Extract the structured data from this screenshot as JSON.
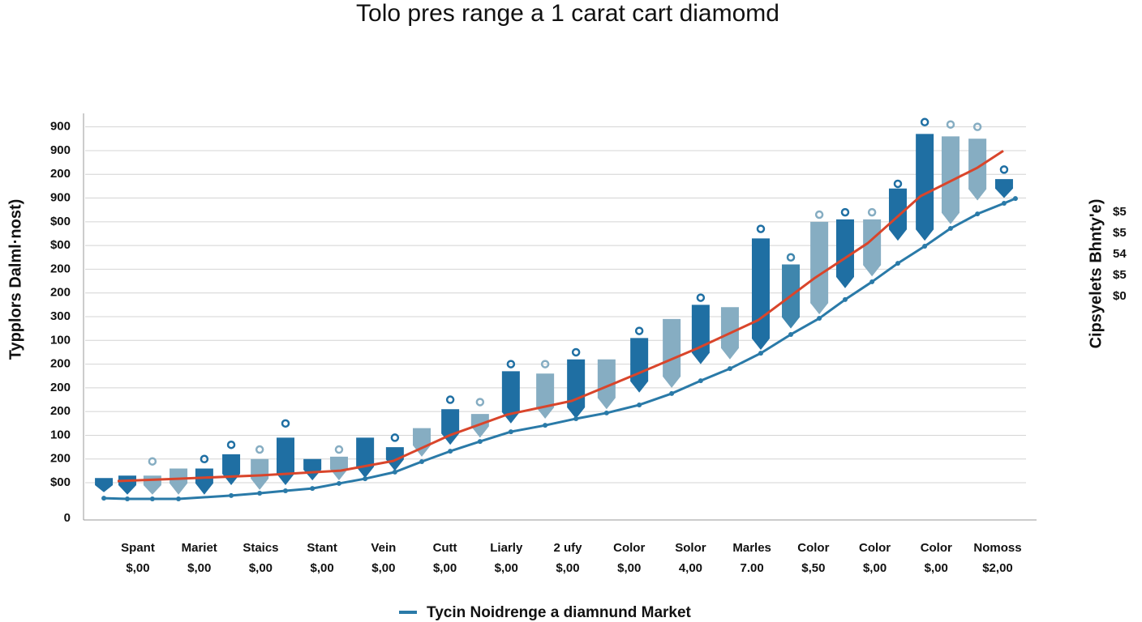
{
  "chart_data": {
    "type": "box-line",
    "title": "Tolo pres range a 1 carat cart diamomd",
    "y_label": "Typplors Dalml·nost)",
    "y2_label": "Cipsyelets Bhnty'e)",
    "y2_labels": [
      "$5",
      "$5",
      "54",
      "$5",
      "$0"
    ],
    "categories": [
      "Spant",
      "Mariet",
      "Staics",
      "Stant",
      "Vein",
      "Cutt",
      "Liarly",
      "2 ufy",
      "Color",
      "Solor",
      "Marles",
      "Color",
      "Color",
      "Color",
      "Nomoss"
    ],
    "category_sublabels": [
      "$,00",
      "$,00",
      "$,00",
      "$,00",
      "$,00",
      "$,00",
      "$,00",
      "$,00",
      "$,00",
      "4,00",
      "7.00",
      "$,50",
      "$,00",
      "$,00",
      "$2,00"
    ],
    "xlim": [
      0,
      36
    ],
    "ylim": [
      0,
      17
    ],
    "yticks": [
      0,
      {
        "value": 1.5,
        "label": "$00"
      },
      {
        "value": 2.5,
        "label": "200"
      },
      {
        "value": 3.5,
        "label": "100"
      },
      {
        "value": 4.5,
        "label": "200"
      },
      {
        "value": 5.5,
        "label": "200"
      },
      {
        "value": 6.5,
        "label": "200"
      },
      {
        "value": 7.5,
        "label": "100"
      },
      {
        "value": 8.5,
        "label": "300"
      },
      {
        "value": 9.5,
        "label": "200"
      },
      {
        "value": 10.5,
        "label": "200"
      },
      {
        "value": 11.5,
        "label": "$00"
      },
      {
        "value": 12.5,
        "label": "$00"
      },
      {
        "value": 13.5,
        "label": "900"
      },
      {
        "value": 14.5,
        "label": "200"
      },
      {
        "value": 15.5,
        "label": "900"
      },
      {
        "value": 16.5,
        "label": "900"
      }
    ],
    "grid": true,
    "boxes": {
      "x": [
        0.71,
        1.6,
        2.55,
        3.54,
        4.52,
        5.54,
        6.62,
        7.6,
        8.62,
        9.63,
        10.62,
        11.75,
        12.77,
        13.85,
        14.98,
        16.15,
        17.45,
        18.62,
        19.78,
        21.02,
        22.25,
        23.35,
        24.46,
        25.63,
        26.77,
        27.85,
        28.83,
        29.85,
        30.83,
        31.85,
        32.83,
        33.85,
        34.86
      ],
      "high": [
        1.7,
        1.8,
        1.8,
        2.1,
        2.1,
        2.7,
        2.5,
        3.4,
        2.5,
        2.6,
        3.4,
        3.0,
        3.8,
        4.6,
        4.4,
        6.2,
        6.1,
        6.7,
        6.7,
        7.6,
        8.4,
        9.0,
        8.9,
        11.8,
        10.7,
        12.5,
        12.6,
        12.6,
        13.9,
        16.2,
        16.1,
        16.0,
        14.3
      ],
      "low": [
        1.1,
        1.0,
        1.0,
        1.0,
        1.0,
        1.4,
        1.2,
        1.4,
        1.6,
        1.6,
        1.7,
        2.0,
        2.6,
        3.1,
        3.4,
        4.0,
        4.2,
        4.2,
        4.6,
        5.3,
        5.5,
        6.5,
        6.7,
        7.1,
        8.0,
        8.6,
        9.7,
        10.2,
        11.7,
        11.7,
        12.4,
        13.4,
        13.5
      ],
      "outlier": [
        null,
        null,
        2.4,
        null,
        2.5,
        3.1,
        2.9,
        4.0,
        null,
        2.9,
        null,
        3.4,
        null,
        5.0,
        4.9,
        6.5,
        6.5,
        7.0,
        null,
        7.9,
        null,
        9.3,
        null,
        12.2,
        11.0,
        12.8,
        12.9,
        12.9,
        14.1,
        16.7,
        16.6,
        16.5,
        14.7
      ],
      "colors": [
        "#1f6fa3",
        "#1f6fa3",
        "#86adc2",
        "#86adc2",
        "#1f6fa3",
        "#1f6fa3",
        "#86adc2",
        "#1f6fa3",
        "#1f6fa3",
        "#86adc2",
        "#1f6fa3",
        "#1f6fa3",
        "#86adc2",
        "#1f6fa3",
        "#86adc2",
        "#1f6fa3",
        "#86adc2",
        "#1f6fa3",
        "#86adc2",
        "#1f6fa3",
        "#86adc2",
        "#1f6fa3",
        "#86adc2",
        "#1f6fa3",
        "#3f86ad",
        "#86adc2",
        "#1f6fa3",
        "#86adc2",
        "#1f6fa3",
        "#1f6fa3",
        "#86adc2",
        "#86adc2",
        "#1f6fa3"
      ]
    },
    "series": [
      {
        "name": "Tycin Noidrenge a diamnund Market",
        "color": "#2a7aa8",
        "markers": true,
        "x": [
          0.71,
          1.6,
          2.55,
          3.54,
          5.54,
          6.62,
          7.6,
          8.62,
          9.63,
          10.62,
          11.75,
          12.77,
          13.85,
          14.98,
          16.15,
          17.45,
          18.62,
          19.78,
          21.02,
          22.25,
          23.35,
          24.46,
          25.63,
          26.77,
          27.85,
          28.83,
          29.85,
          30.83,
          31.85,
          32.83,
          33.85,
          34.86,
          35.29
        ],
        "values": [
          0.85,
          0.82,
          0.82,
          0.82,
          0.96,
          1.06,
          1.16,
          1.26,
          1.47,
          1.67,
          1.95,
          2.39,
          2.83,
          3.24,
          3.65,
          3.92,
          4.2,
          4.44,
          4.78,
          5.26,
          5.8,
          6.31,
          6.96,
          7.75,
          8.43,
          9.22,
          9.97,
          10.75,
          11.47,
          12.22,
          12.83,
          13.28,
          13.48
        ]
      },
      {
        "color": "#d9452b",
        "markers": false,
        "x": [
          1.23,
          3.54,
          6.62,
          9.69,
          11.69,
          13.85,
          16.0,
          18.46,
          20.92,
          23.23,
          25.54,
          27.69,
          29.69,
          31.69,
          33.85,
          34.83
        ],
        "values": [
          1.57,
          1.67,
          1.81,
          2.01,
          2.42,
          3.51,
          4.37,
          4.95,
          6.08,
          7.17,
          8.36,
          10.14,
          11.6,
          13.58,
          14.78,
          15.49
        ]
      }
    ]
  }
}
